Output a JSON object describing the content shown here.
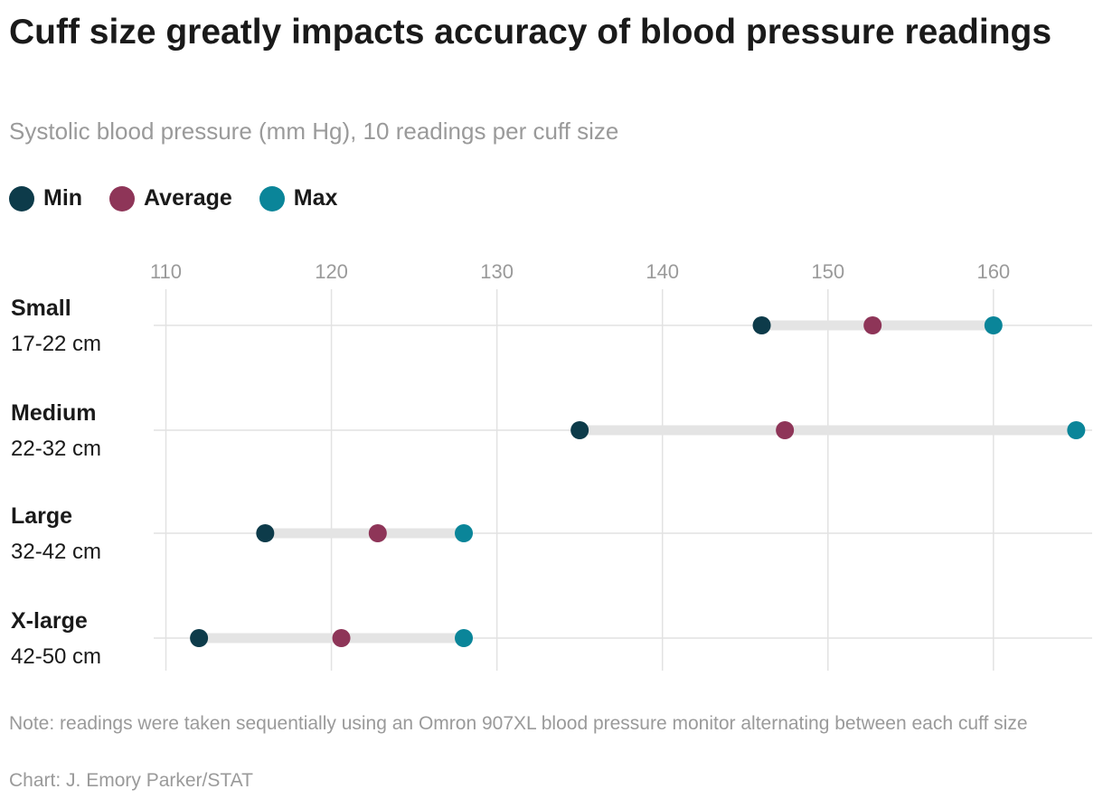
{
  "header": {
    "title": "Cuff size greatly impacts accuracy of blood pressure readings",
    "subtitle": "Systolic blood pressure (mm Hg), 10 readings per cuff size"
  },
  "legend": [
    {
      "label": "Min",
      "color": "#0d3b4a"
    },
    {
      "label": "Average",
      "color": "#8e3558"
    },
    {
      "label": "Max",
      "color": "#0a8599"
    }
  ],
  "footer": {
    "note": "Note: readings were taken sequentially using an Omron 907XL blood pressure monitor alternating between each cuff size",
    "credit": "Chart: J. Emory Parker/STAT"
  },
  "chart_data": {
    "type": "dumbbell",
    "xlim": [
      110,
      165.5
    ],
    "xticks": [
      "110",
      "120",
      "130",
      "140",
      "150",
      "160"
    ],
    "xtick_values": [
      110,
      120,
      130,
      140,
      150,
      160
    ],
    "categories": [
      {
        "name": "Small",
        "range": "17-22 cm",
        "min": 146,
        "average": 152.7,
        "max": 160
      },
      {
        "name": "Medium",
        "range": "22-32 cm",
        "min": 135,
        "average": 147.4,
        "max": 165
      },
      {
        "name": "Large",
        "range": "32-42 cm",
        "min": 116,
        "average": 122.8,
        "max": 128
      },
      {
        "name": "X-large",
        "range": "42-50 cm",
        "min": 112,
        "average": 120.6,
        "max": 128
      }
    ],
    "colors": {
      "min": "#0d3b4a",
      "average": "#8e3558",
      "max": "#0a8599",
      "bar": "#e4e4e4",
      "grid": "#e2e2e2"
    }
  }
}
